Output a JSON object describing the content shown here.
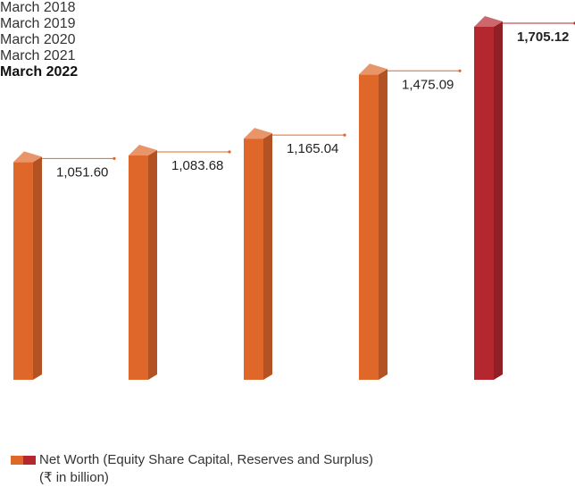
{
  "chart_data": {
    "type": "bar3d",
    "categories": [
      "March 2018",
      "March 2019",
      "March 2020",
      "March 2021",
      "March 2022"
    ],
    "series": [
      {
        "name": "Net Worth (Equity Share Capital, Reserves and Surplus)",
        "values": [
          1051.6,
          1083.68,
          1165.04,
          1475.09,
          1705.12
        ],
        "value_labels": [
          "1,051.60",
          "1,083.68",
          "1,165.04",
          "1,475.09",
          "1,705.12"
        ]
      }
    ],
    "colors": [
      "#e0672a",
      "#e0672a",
      "#e0672a",
      "#e0672a",
      "#b5272f"
    ],
    "highlight_index": 4,
    "unit_note": "(₹ in billion)"
  }
}
